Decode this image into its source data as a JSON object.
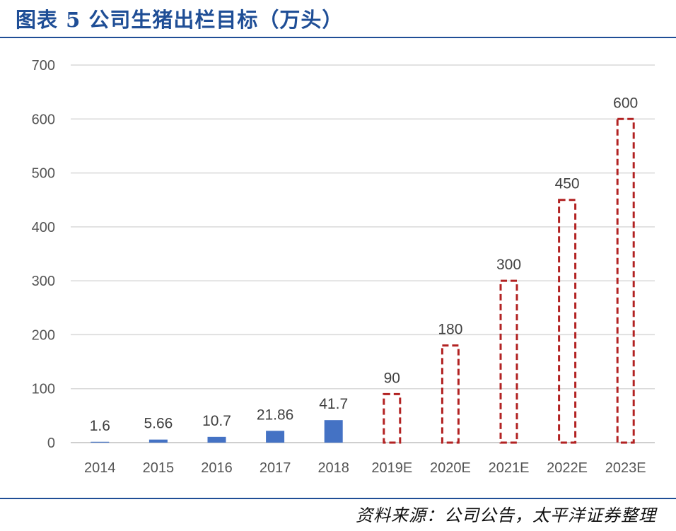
{
  "title": "图表 5 公司生猪出栏目标（万头）",
  "source": "资料来源：公司公告，太平洋证券整理",
  "colors": {
    "title": "#1f4e96",
    "actual": "#4472c4",
    "estimate": "#b22222",
    "grid": "#d9d9d9"
  },
  "chart_data": {
    "type": "bar",
    "categories": [
      "2014",
      "2015",
      "2016",
      "2017",
      "2018",
      "2019E",
      "2020E",
      "2021E",
      "2022E",
      "2023E"
    ],
    "values": [
      1.6,
      5.66,
      10.7,
      21.86,
      41.7,
      90,
      180,
      300,
      450,
      600
    ],
    "value_labels": [
      "1.6",
      "5.66",
      "10.7",
      "21.86",
      "41.7",
      "90",
      "180",
      "300",
      "450",
      "600"
    ],
    "bar_style": [
      "solid",
      "solid",
      "solid",
      "solid",
      "solid",
      "dashed-outline",
      "dashed-outline",
      "dashed-outline",
      "dashed-outline",
      "dashed-outline"
    ],
    "ylim": [
      0,
      700
    ],
    "yticks": [
      0,
      100,
      200,
      300,
      400,
      500,
      600,
      700
    ],
    "grid": true,
    "legend": "none"
  }
}
